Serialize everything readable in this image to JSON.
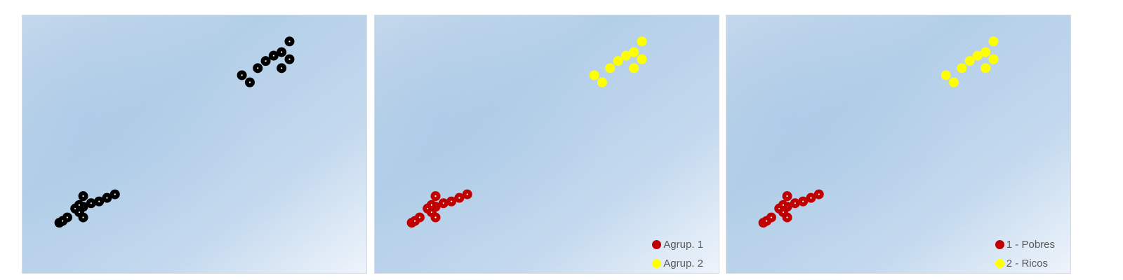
{
  "chart_data": [
    {
      "type": "scatter",
      "title": "",
      "xlabel": "",
      "ylabel": "",
      "axes_visible": false,
      "grid": false,
      "legend": null,
      "background": "light blue gradient",
      "series": [
        {
          "color": "#000000",
          "points": [
            [
              20,
              14
            ],
            [
              24,
              16
            ],
            [
              30,
              20
            ],
            [
              50,
              20
            ],
            [
              45,
              26
            ],
            [
              40,
              30
            ],
            [
              50,
              32
            ],
            [
              45,
              34
            ],
            [
              60,
              36
            ],
            [
              70,
              38
            ],
            [
              50,
              44
            ],
            [
              80,
              42
            ],
            [
              90,
              46
            ],
            [
              250,
              180
            ],
            [
              260,
              172
            ],
            [
              270,
              188
            ],
            [
              280,
              196
            ],
            [
              290,
              202
            ],
            [
              300,
              188
            ],
            [
              300,
              206
            ],
            [
              310,
              198
            ],
            [
              310,
              218
            ]
          ]
        }
      ]
    },
    {
      "type": "scatter",
      "title": "",
      "xlabel": "",
      "ylabel": "",
      "axes_visible": false,
      "grid": false,
      "legend": "bottom-right",
      "background": "light blue gradient",
      "series": [
        {
          "name": "Agrup. 1",
          "color": "#c00000",
          "points": [
            [
              20,
              14
            ],
            [
              24,
              16
            ],
            [
              30,
              20
            ],
            [
              50,
              20
            ],
            [
              45,
              26
            ],
            [
              40,
              30
            ],
            [
              50,
              32
            ],
            [
              45,
              34
            ],
            [
              60,
              36
            ],
            [
              70,
              38
            ],
            [
              50,
              44
            ],
            [
              80,
              42
            ],
            [
              90,
              46
            ]
          ]
        },
        {
          "name": "Agrup. 2",
          "color": "#ffff00",
          "points": [
            [
              250,
              180
            ],
            [
              260,
              172
            ],
            [
              270,
              188
            ],
            [
              280,
              196
            ],
            [
              290,
              202
            ],
            [
              300,
              188
            ],
            [
              300,
              206
            ],
            [
              310,
              198
            ],
            [
              310,
              218
            ]
          ]
        }
      ]
    },
    {
      "type": "scatter",
      "title": "",
      "xlabel": "",
      "ylabel": "",
      "axes_visible": false,
      "grid": false,
      "legend": "bottom-right",
      "background": "light blue gradient",
      "series": [
        {
          "name": "1 - Pobres",
          "color": "#c00000",
          "points": [
            [
              20,
              14
            ],
            [
              24,
              16
            ],
            [
              30,
              20
            ],
            [
              50,
              20
            ],
            [
              45,
              26
            ],
            [
              40,
              30
            ],
            [
              50,
              32
            ],
            [
              45,
              34
            ],
            [
              60,
              36
            ],
            [
              70,
              38
            ],
            [
              50,
              44
            ],
            [
              80,
              42
            ],
            [
              90,
              46
            ]
          ]
        },
        {
          "name": "2 - Ricos",
          "color": "#ffff00",
          "points": [
            [
              250,
              180
            ],
            [
              260,
              172
            ],
            [
              270,
              188
            ],
            [
              280,
              196
            ],
            [
              290,
              202
            ],
            [
              300,
              188
            ],
            [
              300,
              206
            ],
            [
              310,
              198
            ],
            [
              310,
              218
            ]
          ]
        }
      ]
    }
  ]
}
